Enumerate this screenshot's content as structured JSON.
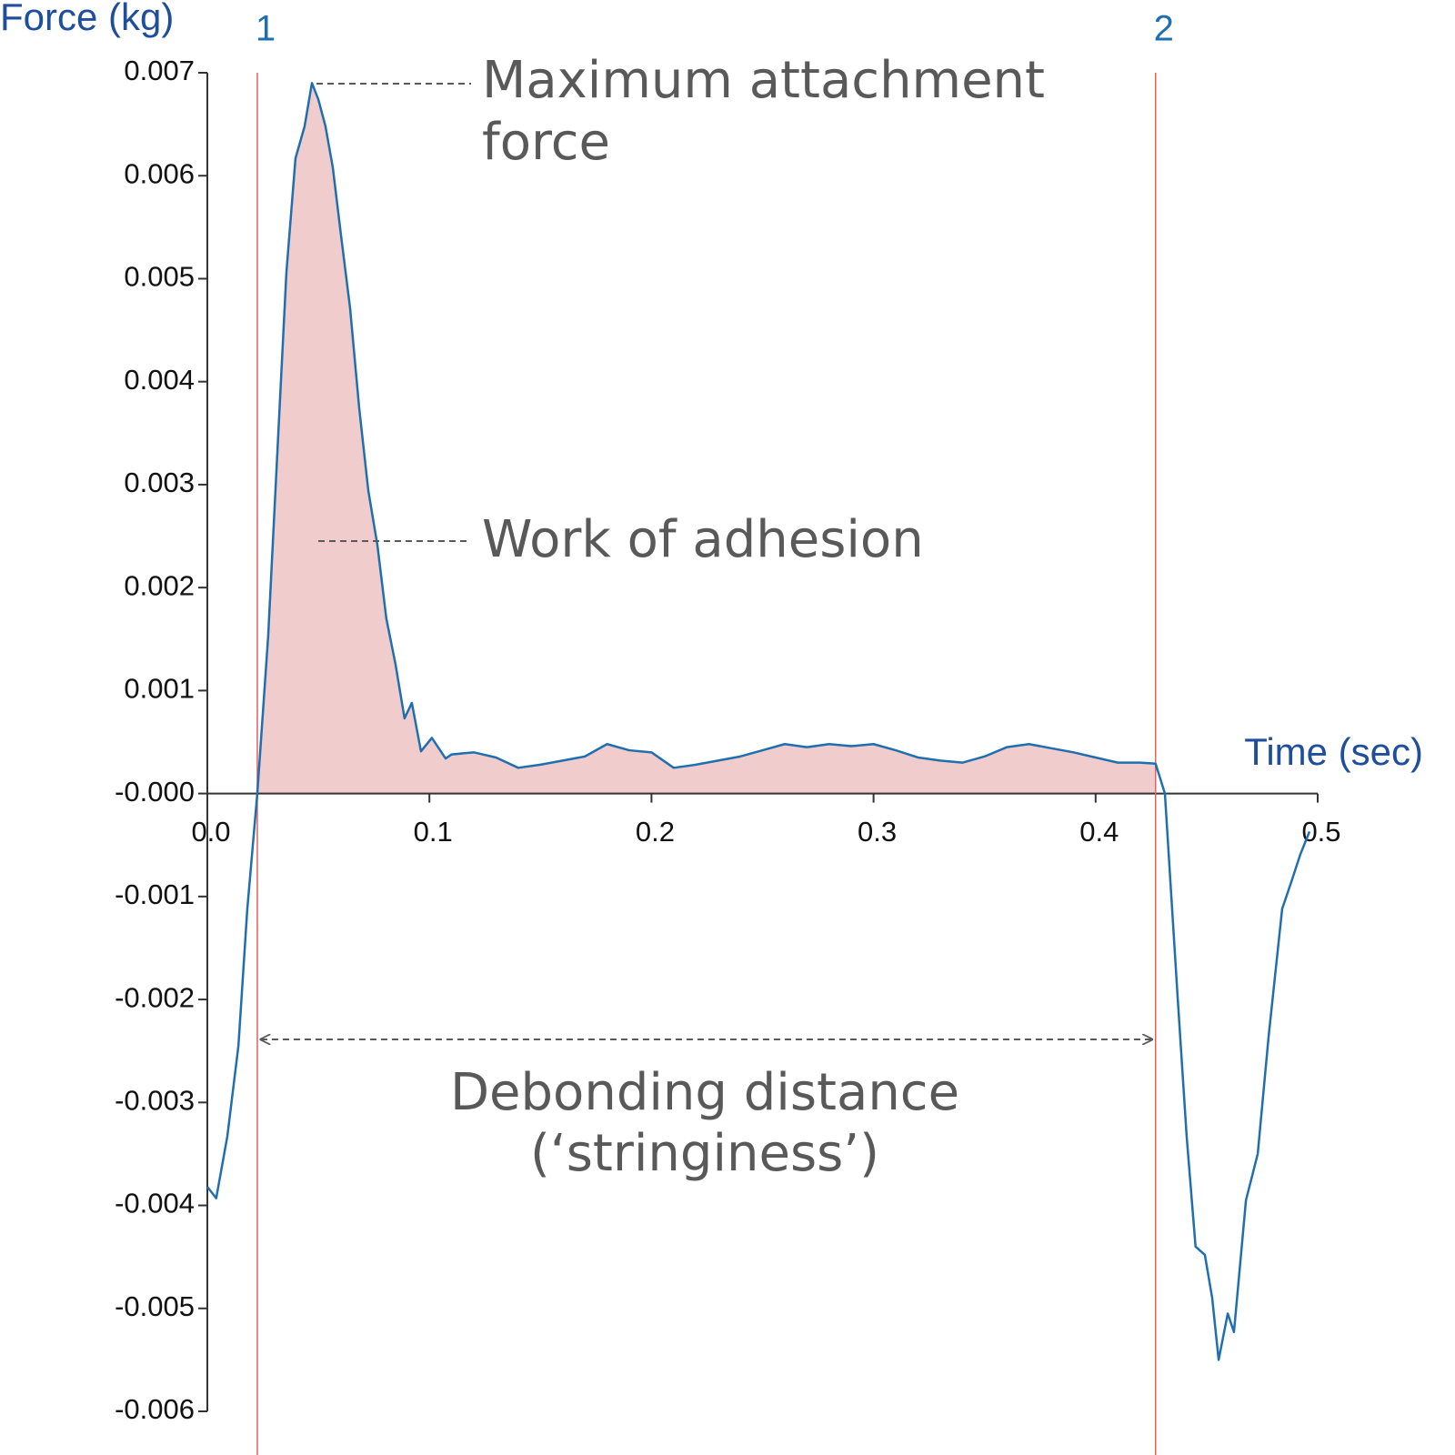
{
  "chart_data": {
    "type": "line",
    "y_label": "Force (kg)",
    "x_label": "Time (sec)",
    "xlim": [
      0,
      0.5
    ],
    "ylim": [
      -0.006,
      0.007
    ],
    "xticks": [
      {
        "value": 0,
        "label": "0.0"
      },
      0.1,
      0.2,
      0.3,
      0.4,
      0.5
    ],
    "yticks": [
      -0.006,
      -0.005,
      -0.004,
      -0.003,
      -0.002,
      -0.001,
      {
        "value": 0,
        "label": "-0.000"
      },
      0.001,
      0.002,
      0.003,
      0.004,
      0.005,
      0.006,
      0.007
    ],
    "color": "#1f6fb0",
    "fill_color": "#f1cccc",
    "marker_color": "#e06060",
    "x": [
      0,
      0.004,
      0.009,
      0.014,
      0.018,
      0.0225,
      0.0274,
      0.0315,
      0.0356,
      0.0397,
      0.0438,
      0.0471,
      0.05,
      0.0532,
      0.0565,
      0.0602,
      0.0643,
      0.0684,
      0.0725,
      0.0766,
      0.0806,
      0.0847,
      0.0888,
      0.0921,
      0.0962,
      0.1011,
      0.1073,
      0.11,
      0.12,
      0.13,
      0.14,
      0.15,
      0.16,
      0.17,
      0.18,
      0.19,
      0.2,
      0.21,
      0.22,
      0.23,
      0.24,
      0.25,
      0.26,
      0.27,
      0.28,
      0.29,
      0.3,
      0.31,
      0.32,
      0.33,
      0.34,
      0.35,
      0.36,
      0.37,
      0.38,
      0.39,
      0.4,
      0.41,
      0.42,
      0.427,
      0.4312,
      0.437,
      0.441,
      0.445,
      0.4492,
      0.4525,
      0.4554,
      0.4595,
      0.4623,
      0.4677,
      0.473,
      0.4779,
      0.484,
      0.4881,
      0.4922,
      0.4963
    ],
    "values": [
      -0.00382,
      -0.00393,
      -0.00333,
      -0.00245,
      -0.00112,
      0,
      0.00153,
      0.0033,
      0.00506,
      0.00617,
      0.00648,
      0.0069,
      0.00674,
      0.00648,
      0.00608,
      0.00542,
      0.00471,
      0.00374,
      0.00294,
      0.00241,
      0.0017,
      0.00126,
      0.00073,
      0.00088,
      0.00041,
      0.00054,
      0.00034,
      0.00038,
      0.0004,
      0.00035,
      0.00025,
      0.00028,
      0.00032,
      0.00036,
      0.00048,
      0.00042,
      0.0004,
      0.00025,
      0.00028,
      0.00032,
      0.00036,
      0.00042,
      0.00048,
      0.00045,
      0.00048,
      0.00046,
      0.00048,
      0.00042,
      0.00035,
      0.00032,
      0.0003,
      0.00036,
      0.00045,
      0.00048,
      0.00044,
      0.0004,
      0.00035,
      0.0003,
      0.0003,
      0.00029,
      0,
      -0.002,
      -0.00333,
      -0.0044,
      -0.00448,
      -0.0049,
      -0.0055,
      -0.00505,
      -0.00523,
      -0.00395,
      -0.0035,
      -0.00236,
      -0.00112,
      -0.00086,
      -0.00059,
      -0.00037
    ],
    "markers": [
      {
        "x": 0.0225,
        "label": "1"
      },
      {
        "x": 0.427,
        "label": "2"
      }
    ],
    "annotations": {
      "max_force": [
        "Maximum attachment",
        "force"
      ],
      "work": [
        "Work of adhesion"
      ],
      "debonding": [
        "Debonding distance",
        "(‘stringiness’)"
      ]
    }
  }
}
